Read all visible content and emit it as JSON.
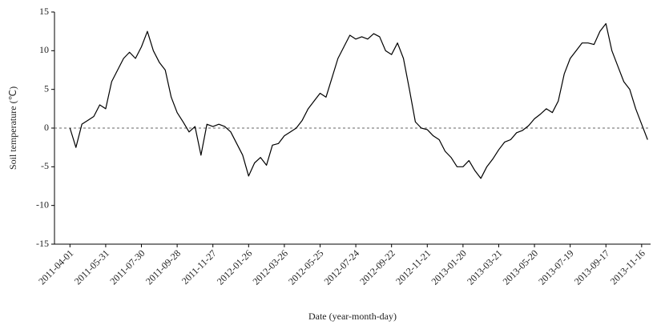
{
  "chart_data": {
    "type": "line",
    "y_label": "Soil temperature (℃)",
    "x_label": "Date (year-month-day)",
    "color": "#000000",
    "reference_line": 0,
    "xlim": [
      "2011-03-06",
      "2013-12-01"
    ],
    "xticks": [
      "2011-04-01",
      "2011-05-31",
      "2011-07-30",
      "2011-09-28",
      "2011-11-27",
      "2012-01-26",
      "2012-03-26",
      "2012-05-25",
      "2012-07-24",
      "2012-09-22",
      "2012-11-21",
      "2013-01-20",
      "2013-03-21",
      "2013-05-20",
      "2013-07-19",
      "2013-09-17",
      "2013-11-16"
    ],
    "ylim": [
      -15,
      15
    ],
    "yticks": [
      -15,
      -10,
      -5,
      0,
      5,
      10,
      15
    ],
    "x": [
      "2011-04-01",
      "2011-04-11",
      "2011-04-21",
      "2011-05-01",
      "2011-05-11",
      "2011-05-21",
      "2011-05-31",
      "2011-06-10",
      "2011-06-20",
      "2011-06-30",
      "2011-07-10",
      "2011-07-20",
      "2011-07-30",
      "2011-08-09",
      "2011-08-19",
      "2011-08-29",
      "2011-09-08",
      "2011-09-18",
      "2011-09-28",
      "2011-10-08",
      "2011-10-18",
      "2011-10-28",
      "2011-11-07",
      "2011-11-17",
      "2011-11-27",
      "2011-12-07",
      "2011-12-17",
      "2011-12-27",
      "2012-01-06",
      "2012-01-16",
      "2012-01-26",
      "2012-02-05",
      "2012-02-15",
      "2012-02-25",
      "2012-03-06",
      "2012-03-16",
      "2012-03-26",
      "2012-04-05",
      "2012-04-15",
      "2012-04-25",
      "2012-05-05",
      "2012-05-15",
      "2012-05-25",
      "2012-06-04",
      "2012-06-14",
      "2012-06-24",
      "2012-07-04",
      "2012-07-14",
      "2012-07-24",
      "2012-08-03",
      "2012-08-13",
      "2012-08-23",
      "2012-09-02",
      "2012-09-12",
      "2012-09-22",
      "2012-10-02",
      "2012-10-12",
      "2012-10-22",
      "2012-11-01",
      "2012-11-11",
      "2012-11-21",
      "2012-12-01",
      "2012-12-11",
      "2012-12-21",
      "2012-12-31",
      "2013-01-10",
      "2013-01-20",
      "2013-01-30",
      "2013-02-09",
      "2013-02-19",
      "2013-03-01",
      "2013-03-11",
      "2013-03-21",
      "2013-03-31",
      "2013-04-10",
      "2013-04-20",
      "2013-04-30",
      "2013-05-10",
      "2013-05-20",
      "2013-05-30",
      "2013-06-09",
      "2013-06-19",
      "2013-06-29",
      "2013-07-09",
      "2013-07-19",
      "2013-07-29",
      "2013-08-08",
      "2013-08-18",
      "2013-08-28",
      "2013-09-07",
      "2013-09-17",
      "2013-09-27",
      "2013-10-07",
      "2013-10-17",
      "2013-10-27",
      "2013-11-06",
      "2013-11-16",
      "2013-11-26"
    ],
    "values": [
      0,
      -2.5,
      0.5,
      1,
      1.5,
      3,
      2.5,
      6,
      7.5,
      9,
      9.8,
      9,
      10.5,
      12.5,
      10,
      8.5,
      7.5,
      4,
      2,
      0.8,
      -0.5,
      0.2,
      -3.5,
      0.5,
      0.2,
      0.5,
      0.2,
      -0.5,
      -2,
      -3.5,
      -6.2,
      -4.5,
      -3.8,
      -4.8,
      -2.2,
      -2,
      -1,
      -0.5,
      0,
      1,
      2.5,
      3.5,
      4.5,
      4,
      6.5,
      9,
      10.5,
      12,
      11.5,
      11.8,
      11.5,
      12.2,
      11.8,
      10,
      9.5,
      11,
      9,
      5,
      0.8,
      0,
      -0.2,
      -1,
      -1.5,
      -3,
      -3.8,
      -5,
      -5,
      -4.2,
      -5.5,
      -6.5,
      -5,
      -4,
      -2.8,
      -1.8,
      -1.5,
      -0.6,
      -0.3,
      0.3,
      1.2,
      1.8,
      2.5,
      2,
      3.5,
      7,
      9,
      10,
      11,
      11,
      10.8,
      12.5,
      13.5,
      10,
      8,
      6,
      5,
      2.5,
      0.5,
      -1.5
    ]
  }
}
